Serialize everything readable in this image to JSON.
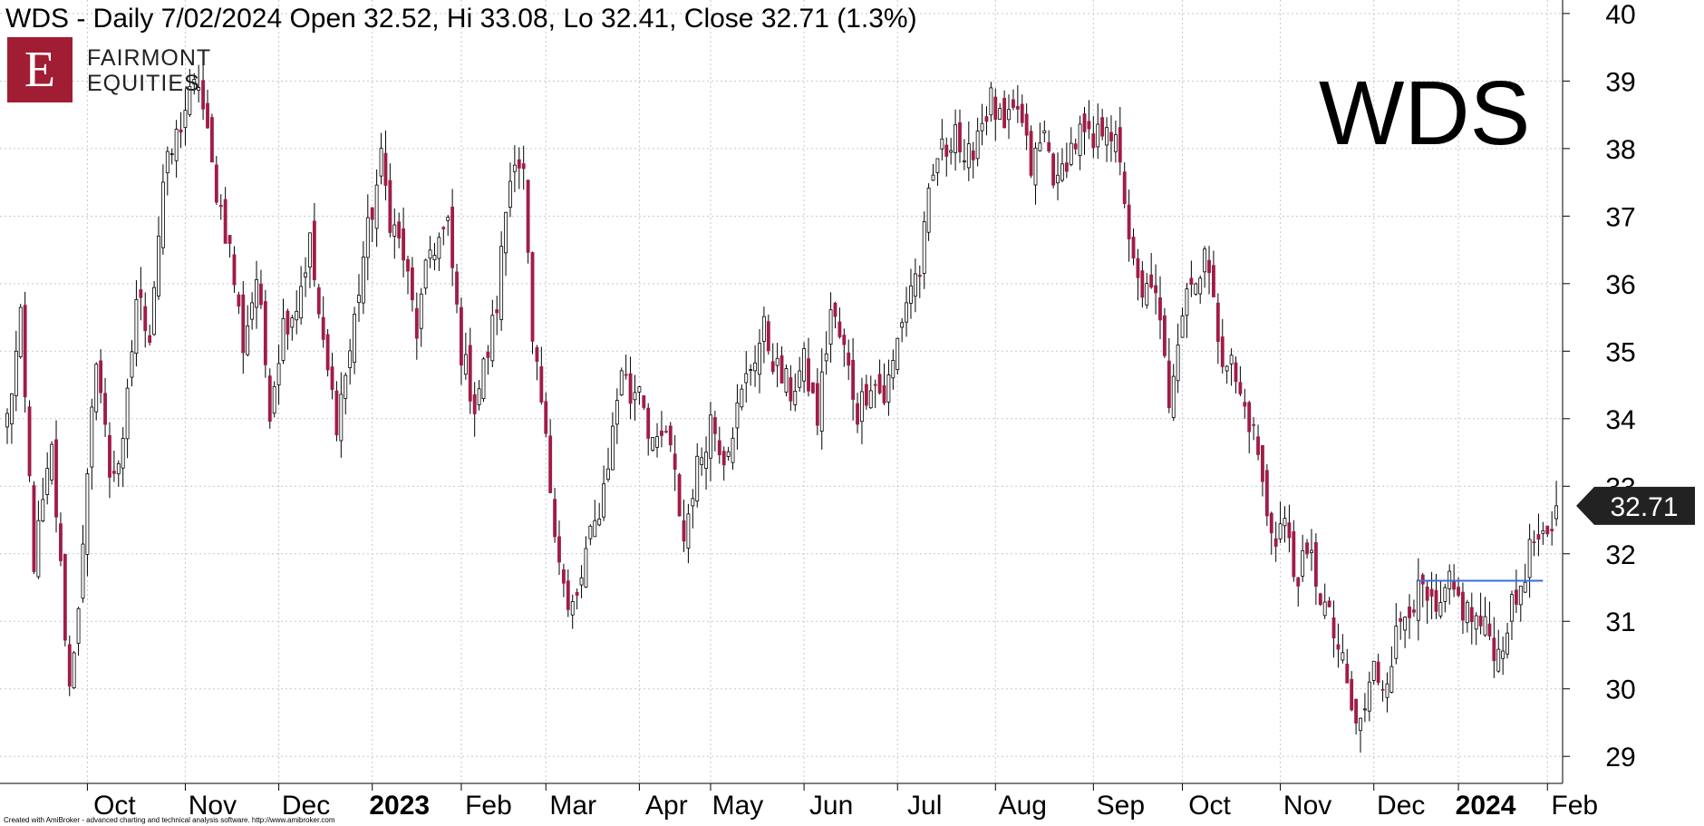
{
  "header": {
    "title": "WDS - Daily 7/02/2024 Open 32.52, Hi 33.08, Lo 32.41, Close 32.71 (1.3%)"
  },
  "logo": {
    "mark": "E",
    "line1": "FAIRMONT",
    "line2": "EQUITIES"
  },
  "ticker": "WDS",
  "footer": "Created with AmiBroker - advanced charting and technical analysis software. http://www.amibroker.com",
  "colors": {
    "up": "#ffffff",
    "down": "#a11d45",
    "wick": "#000000",
    "grid": "#c8c8c8",
    "resistance": "#3a6fd8",
    "price_tag": "#222222"
  },
  "chart_data": {
    "type": "candlestick",
    "symbol": "WDS",
    "ylim": [
      28.6,
      40.2
    ],
    "y_ticks": [
      29,
      30,
      31,
      32,
      33,
      34,
      35,
      36,
      37,
      38,
      39,
      40
    ],
    "last_price": 32.71,
    "x_labels": [
      {
        "label": "Oct",
        "bold": false,
        "index": 18
      },
      {
        "label": "Nov",
        "bold": false,
        "index": 40
      },
      {
        "label": "Dec",
        "bold": false,
        "index": 61
      },
      {
        "label": "2023",
        "bold": true,
        "index": 82
      },
      {
        "label": "Feb",
        "bold": false,
        "index": 102
      },
      {
        "label": "Mar",
        "bold": false,
        "index": 121
      },
      {
        "label": "Apr",
        "bold": false,
        "index": 142
      },
      {
        "label": "May",
        "bold": false,
        "index": 158
      },
      {
        "label": "Jun",
        "bold": false,
        "index": 179
      },
      {
        "label": "Jul",
        "bold": false,
        "index": 200
      },
      {
        "label": "Aug",
        "bold": false,
        "index": 222
      },
      {
        "label": "Sep",
        "bold": false,
        "index": 244
      },
      {
        "label": "Oct",
        "bold": false,
        "index": 264
      },
      {
        "label": "Nov",
        "bold": false,
        "index": 286
      },
      {
        "label": "Dec",
        "bold": false,
        "index": 307
      },
      {
        "label": "2024",
        "bold": true,
        "index": 326
      },
      {
        "label": "Feb",
        "bold": false,
        "index": 346
      }
    ],
    "resistance_line": {
      "value": 31.6,
      "start_index": 317,
      "end_index": 345
    },
    "anchors": [
      [
        0,
        34.0
      ],
      [
        3,
        35.4
      ],
      [
        6,
        31.9
      ],
      [
        10,
        33.5
      ],
      [
        14,
        30.0
      ],
      [
        17,
        32.0
      ],
      [
        20,
        35.0
      ],
      [
        23,
        33.2
      ],
      [
        26,
        33.5
      ],
      [
        29,
        35.8
      ],
      [
        32,
        35.3
      ],
      [
        35,
        37.5
      ],
      [
        40,
        38.6
      ],
      [
        43,
        39.0
      ],
      [
        46,
        37.7
      ],
      [
        50,
        36.5
      ],
      [
        53,
        35.1
      ],
      [
        56,
        36.1
      ],
      [
        59,
        34.2
      ],
      [
        62,
        35.4
      ],
      [
        65,
        35.7
      ],
      [
        68,
        36.6
      ],
      [
        71,
        35.0
      ],
      [
        74,
        34.0
      ],
      [
        77,
        35.0
      ],
      [
        80,
        36.4
      ],
      [
        84,
        37.8
      ],
      [
        86,
        37.0
      ],
      [
        89,
        36.4
      ],
      [
        92,
        35.3
      ],
      [
        95,
        36.5
      ],
      [
        99,
        36.8
      ],
      [
        102,
        35.0
      ],
      [
        105,
        34.2
      ],
      [
        108,
        35.0
      ],
      [
        110,
        35.7
      ],
      [
        112,
        37.1
      ],
      [
        114,
        38.0
      ],
      [
        116,
        37.6
      ],
      [
        118,
        35.0
      ],
      [
        120,
        34.2
      ],
      [
        122,
        33.0
      ],
      [
        124,
        32.0
      ],
      [
        126,
        31.1
      ],
      [
        128,
        31.3
      ],
      [
        130,
        32.0
      ],
      [
        132,
        32.4
      ],
      [
        134,
        33.0
      ],
      [
        136,
        33.8
      ],
      [
        138,
        34.8
      ],
      [
        140,
        34.3
      ],
      [
        142,
        34.6
      ],
      [
        144,
        33.9
      ],
      [
        146,
        33.5
      ],
      [
        148,
        33.8
      ],
      [
        150,
        33.1
      ],
      [
        152,
        32.2
      ],
      [
        154,
        33.0
      ],
      [
        156,
        33.5
      ],
      [
        158,
        34.0
      ],
      [
        161,
        33.5
      ],
      [
        164,
        34.1
      ],
      [
        167,
        34.8
      ],
      [
        170,
        35.3
      ],
      [
        173,
        34.7
      ],
      [
        176,
        34.4
      ],
      [
        179,
        34.8
      ],
      [
        182,
        34.0
      ],
      [
        185,
        35.6
      ],
      [
        188,
        35.0
      ],
      [
        191,
        34.1
      ],
      [
        194,
        34.6
      ],
      [
        197,
        34.3
      ],
      [
        199,
        34.8
      ],
      [
        201,
        35.5
      ],
      [
        203,
        36.0
      ],
      [
        205,
        36.2
      ],
      [
        207,
        37.2
      ],
      [
        209,
        37.9
      ],
      [
        211,
        38.0
      ],
      [
        213,
        38.4
      ],
      [
        215,
        37.6
      ],
      [
        218,
        38.3
      ],
      [
        221,
        38.7
      ],
      [
        224,
        38.2
      ],
      [
        227,
        38.6
      ],
      [
        230,
        37.7
      ],
      [
        233,
        38.2
      ],
      [
        236,
        37.4
      ],
      [
        238,
        37.9
      ],
      [
        241,
        38.2
      ],
      [
        244,
        38.0
      ],
      [
        247,
        38.5
      ],
      [
        249,
        38.0
      ],
      [
        251,
        37.3
      ],
      [
        253,
        36.2
      ],
      [
        255,
        35.7
      ],
      [
        257,
        36.1
      ],
      [
        259,
        35.3
      ],
      [
        261,
        34.3
      ],
      [
        263,
        35.3
      ],
      [
        265,
        36.0
      ],
      [
        267,
        36.0
      ],
      [
        269,
        36.6
      ],
      [
        271,
        35.6
      ],
      [
        273,
        35.0
      ],
      [
        275,
        34.8
      ],
      [
        277,
        34.3
      ],
      [
        279,
        34.0
      ],
      [
        281,
        33.5
      ],
      [
        283,
        32.5
      ],
      [
        285,
        32.3
      ],
      [
        287,
        32.5
      ],
      [
        289,
        31.7
      ],
      [
        291,
        31.8
      ],
      [
        293,
        31.9
      ],
      [
        295,
        31.4
      ],
      [
        297,
        31.0
      ],
      [
        299,
        30.6
      ],
      [
        301,
        30.0
      ],
      [
        303,
        29.4
      ],
      [
        305,
        29.7
      ],
      [
        307,
        30.3
      ],
      [
        309,
        30.1
      ],
      [
        311,
        30.5
      ],
      [
        313,
        31.0
      ],
      [
        315,
        31.3
      ],
      [
        318,
        31.4
      ],
      [
        321,
        31.0
      ],
      [
        324,
        31.5
      ],
      [
        327,
        31.2
      ],
      [
        330,
        31.0
      ],
      [
        333,
        30.8
      ],
      [
        335,
        30.5
      ],
      [
        337,
        31.0
      ],
      [
        339,
        31.3
      ],
      [
        341,
        31.8
      ],
      [
        343,
        32.2
      ],
      [
        345,
        32.1
      ],
      [
        347,
        32.2
      ],
      [
        348,
        32.71
      ]
    ]
  }
}
